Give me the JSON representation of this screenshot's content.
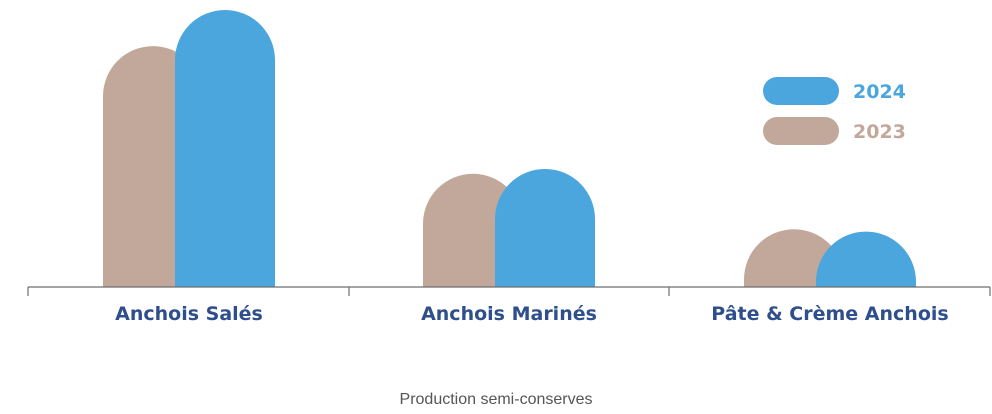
{
  "chart_data": {
    "type": "bar",
    "categories": [
      "Anchois Salés",
      "Anchois Marinés",
      "Pâte & Crème Anchois"
    ],
    "series": [
      {
        "name": "2023",
        "values": [
          100,
          47,
          24
        ],
        "color": "#c2a89b"
      },
      {
        "name": "2024",
        "values": [
          115,
          49,
          23
        ],
        "color": "#4aa6dc"
      }
    ],
    "ylim": [
      0,
      115
    ],
    "legend": "top-right",
    "grid": false,
    "category_label_color": "#2e4e8c",
    "caption": "Production semi-conserves"
  }
}
